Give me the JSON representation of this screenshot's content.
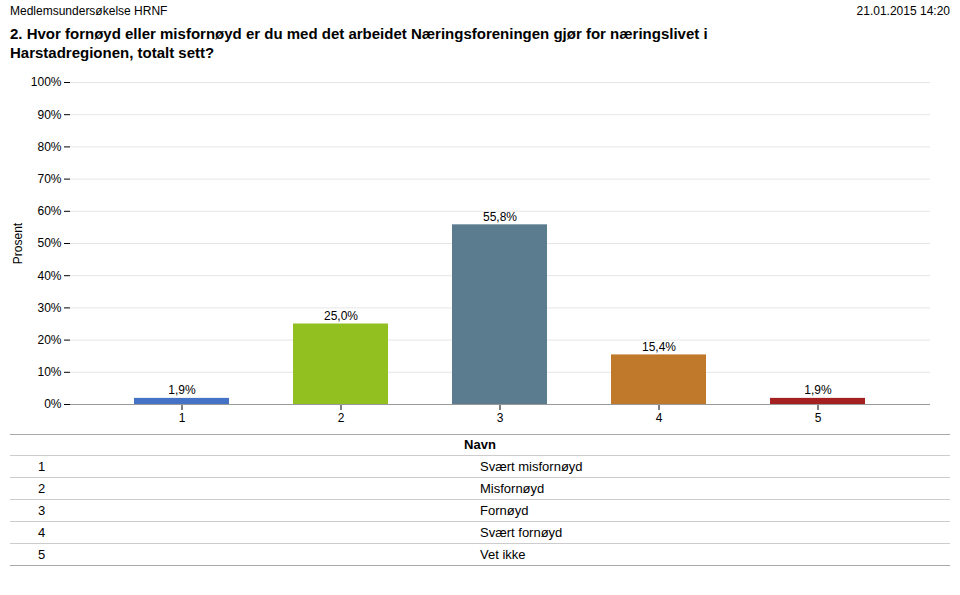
{
  "chart_data": {
    "type": "bar",
    "title": "2. Hvor fornøyd eller misfornøyd er du med det arbeidet Næringsforeningen gjør for næringslivet i\nHarstadregionen, totalt sett?",
    "annotations": [
      "Medlemsundersøkelse HRNF",
      "21.01.2015 14:20"
    ],
    "categories": [
      1,
      2,
      3,
      4,
      5
    ],
    "values": [
      1.9,
      25.0,
      55.8,
      15.4,
      1.9
    ],
    "value_labels": [
      "1,9%",
      "25,0%",
      "55,8%",
      "15,4%",
      "1,9%"
    ],
    "data_labels": true,
    "colors": [
      "#4472C4",
      "#92C020",
      "#5B7B8F",
      "#C0792A",
      "#A52020"
    ],
    "ylabel": "Prosent",
    "ylim": [
      0,
      100
    ],
    "yticks": [
      {
        "value": 0,
        "label": "0%"
      },
      {
        "value": 10,
        "label": "10%"
      },
      {
        "value": 20,
        "label": "20%"
      },
      {
        "value": 30,
        "label": "30%"
      },
      {
        "value": 40,
        "label": "40%"
      },
      {
        "value": 50,
        "label": "50%"
      },
      {
        "value": 60,
        "label": "60%"
      },
      {
        "value": 70,
        "label": "70%"
      },
      {
        "value": 80,
        "label": "80%"
      },
      {
        "value": 90,
        "label": "90%"
      },
      {
        "value": 100,
        "label": "100%"
      }
    ],
    "grid": true,
    "key_table": {
      "title": "Navn",
      "rows": [
        {
          "num": 1,
          "label": "Svært misfornøyd"
        },
        {
          "num": 2,
          "label": "Misfornøyd"
        },
        {
          "num": 3,
          "label": "Fornøyd"
        },
        {
          "num": 4,
          "label": "Svært fornøyd"
        },
        {
          "num": 5,
          "label": "Vet ikke"
        }
      ]
    }
  }
}
